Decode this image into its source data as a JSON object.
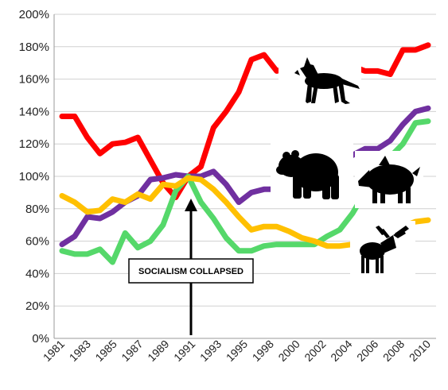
{
  "chart_data": {
    "type": "line",
    "title": "",
    "xlabel": "",
    "ylabel": "",
    "ylim": [
      0,
      200
    ],
    "y_ticks": [
      "0%",
      "20%",
      "40%",
      "60%",
      "80%",
      "100%",
      "120%",
      "140%",
      "160%",
      "180%",
      "200%"
    ],
    "x_tick_labels": [
      "1981",
      "1983",
      "1985",
      "1987",
      "1989",
      "1991",
      "1993",
      "1995",
      "1998",
      "2000",
      "2002",
      "2004",
      "2006",
      "2008",
      "2010"
    ],
    "x": [
      "1981",
      "1982",
      "1983",
      "1984",
      "1985",
      "1986",
      "1987",
      "1988",
      "1989",
      "1990",
      "1991",
      "1992",
      "1993",
      "1994",
      "1995",
      "1996",
      "1997",
      "1998",
      "1999",
      "2000",
      "2001",
      "2002",
      "2003",
      "2004",
      "2005",
      "2006",
      "2007",
      "2008",
      "2009",
      "2010"
    ],
    "grid": true,
    "legend": "none",
    "series": [
      {
        "depicts": "wolf",
        "color": "#ff0000",
        "values": [
          137,
          137,
          124,
          114,
          120,
          121,
          124,
          110,
          96,
          87,
          100,
          106,
          130,
          140,
          152,
          172,
          175,
          165,
          167,
          169,
          170,
          170,
          163,
          168,
          165,
          165,
          163,
          178,
          178,
          181
        ]
      },
      {
        "depicts": "brown bear",
        "color": "#7030a0",
        "values": [
          58,
          63,
          75,
          74,
          78,
          84,
          88,
          98,
          99,
          101,
          100,
          100,
          103,
          95,
          84,
          90,
          92,
          92,
          98,
          100,
          102,
          104,
          108,
          113,
          117,
          117,
          122,
          132,
          140,
          142
        ]
      },
      {
        "depicts": "wild boar",
        "color": "#55d86a",
        "values": [
          54,
          52,
          52,
          55,
          47,
          65,
          56,
          60,
          70,
          91,
          100,
          84,
          74,
          62,
          54,
          54,
          57,
          58,
          58,
          58,
          58,
          63,
          67,
          77,
          90,
          103,
          112,
          120,
          133,
          134
        ]
      },
      {
        "depicts": "moose",
        "color": "#ffc000",
        "values": [
          88,
          84,
          78,
          79,
          86,
          84,
          89,
          86,
          95,
          94,
          99,
          98,
          92,
          84,
          75,
          67,
          69,
          69,
          66,
          62,
          60,
          57,
          57,
          58,
          60,
          63,
          66,
          69,
          72,
          73
        ]
      }
    ],
    "annotations": [
      {
        "text": "SOCIALISM COLLAPSED",
        "points_to_x": "1991"
      }
    ],
    "icons": [
      "wolf-silhouette-icon",
      "bear-silhouette-icon",
      "boar-silhouette-icon",
      "moose-silhouette-icon"
    ]
  }
}
